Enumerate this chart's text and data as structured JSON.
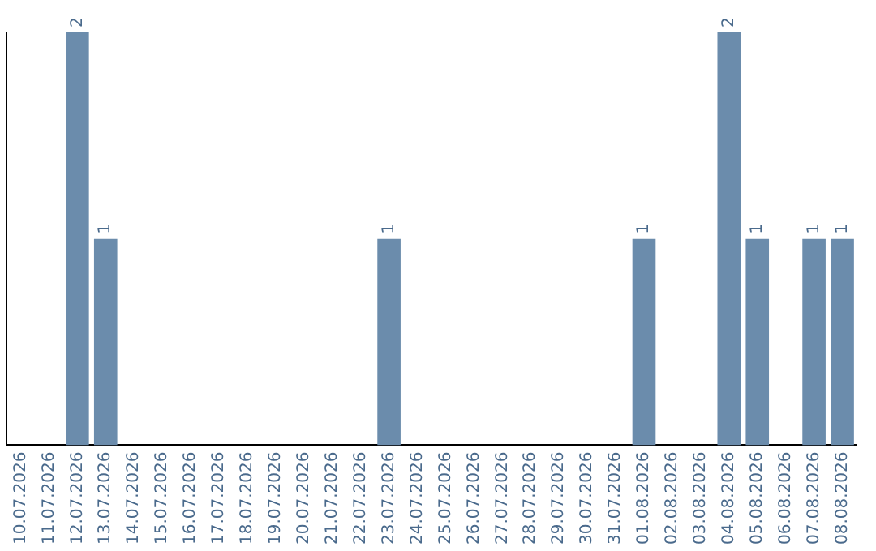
{
  "chart_data": {
    "type": "bar",
    "categories": [
      "10.07.2026",
      "11.07.2026",
      "12.07.2026",
      "13.07.2026",
      "14.07.2026",
      "15.07.2026",
      "16.07.2026",
      "17.07.2026",
      "18.07.2026",
      "19.07.2026",
      "20.07.2026",
      "21.07.2026",
      "22.07.2026",
      "23.07.2026",
      "24.07.2026",
      "25.07.2026",
      "26.07.2026",
      "27.07.2026",
      "28.07.2026",
      "29.07.2026",
      "30.07.2026",
      "31.07.2026",
      "01.08.2026",
      "02.08.2026",
      "03.08.2026",
      "04.08.2026",
      "05.08.2026",
      "06.08.2026",
      "07.08.2026",
      "08.08.2026"
    ],
    "values": [
      0,
      0,
      2,
      1,
      0,
      0,
      0,
      0,
      0,
      0,
      0,
      0,
      0,
      1,
      0,
      0,
      0,
      0,
      0,
      0,
      0,
      0,
      1,
      0,
      0,
      2,
      1,
      0,
      1,
      1
    ],
    "value_labels": [
      null,
      null,
      "2",
      "1",
      null,
      null,
      null,
      null,
      null,
      null,
      null,
      null,
      null,
      "1",
      null,
      null,
      null,
      null,
      null,
      null,
      null,
      null,
      "1",
      null,
      null,
      "2",
      "1",
      null,
      "1",
      "1"
    ],
    "color": "#6b8cac",
    "ylim": [
      0,
      2
    ],
    "grid": false,
    "legend": false,
    "tick_labels": "x"
  }
}
